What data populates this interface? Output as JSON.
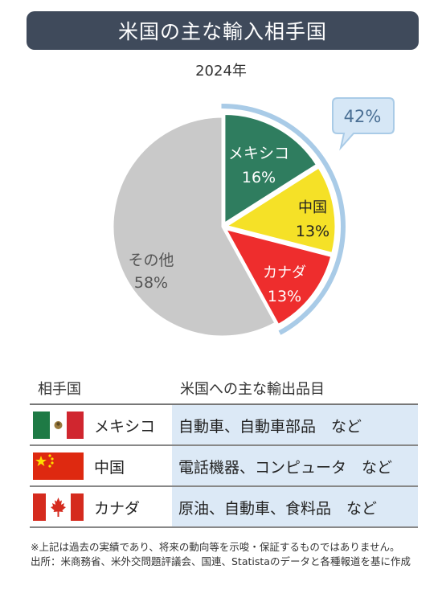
{
  "title": "米国の主な輸入相手国",
  "chart_data": {
    "type": "pie",
    "title": "米国の主な輸入相手国",
    "subtitle": "2024年",
    "slices": [
      {
        "label": "メキシコ",
        "value": 16,
        "value_label": "16%",
        "color": "#2f7d5f"
      },
      {
        "label": "中国",
        "value": 13,
        "value_label": "13%",
        "color": "#f5e127"
      },
      {
        "label": "カナダ",
        "value": 13,
        "value_label": "13%",
        "color": "#ee2d2d"
      },
      {
        "label": "その他",
        "value": 58,
        "value_label": "58%",
        "color": "#c9c9c9"
      }
    ],
    "callout": {
      "label": "42%",
      "note_for_slices": [
        "メキシコ",
        "中国",
        "カナダ"
      ],
      "color": "#a9cbe7"
    }
  },
  "table": {
    "headers": [
      "相手国",
      "米国への主な輸出品目"
    ],
    "rows": [
      {
        "country": "メキシコ",
        "flag": "mexico-flag",
        "items": "自動車、自動車部品　など"
      },
      {
        "country": "中国",
        "flag": "china-flag",
        "items": "電話機器、コンピュータ　など"
      },
      {
        "country": "カナダ",
        "flag": "canada-flag",
        "items": "原油、自動車、食料品　など"
      }
    ]
  },
  "notes": {
    "disclaimer": "※上記は過去の実績であり、将来の動向等を示唆・保証するものではありません。",
    "source": "出所：米商務省、米外交問題評議会、国連、Statistaのデータと各種報道を基に作成"
  }
}
